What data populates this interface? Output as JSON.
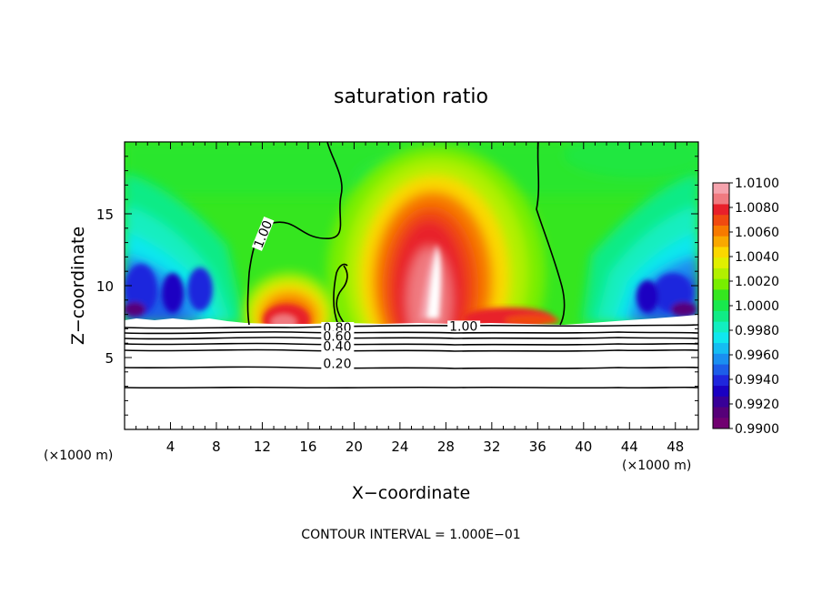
{
  "chart_data": {
    "type": "heatmap",
    "title": "saturation ratio",
    "xlabel": "X−coordinate",
    "ylabel": "Z−coordinate",
    "x_unit_left": "(×1000 m)",
    "x_unit_right": "(×1000 m)",
    "xlim": [
      0,
      50
    ],
    "ylim": [
      0,
      20
    ],
    "x_ticks": [
      4,
      8,
      12,
      16,
      20,
      24,
      28,
      32,
      36,
      40,
      44,
      48
    ],
    "y_ticks": [
      5,
      10,
      15
    ],
    "footer": "CONTOUR INTERVAL = 1.000E−01",
    "colorbar": {
      "range": [
        0.99,
        1.01
      ],
      "labels": [
        "1.0100",
        "1.0080",
        "1.0060",
        "1.0040",
        "1.0020",
        "1.0000",
        "0.9980",
        "0.9960",
        "0.9940",
        "0.9920",
        "0.9900"
      ],
      "colors": [
        "#f5a3ad",
        "#f07a80",
        "#e8202a",
        "#f04a10",
        "#f77a00",
        "#f9a800",
        "#fbd800",
        "#e0ef00",
        "#b2f000",
        "#78ee00",
        "#35e61f",
        "#18e84d",
        "#10eb86",
        "#12eec0",
        "#10e7ee",
        "#15bdf2",
        "#1a8ff0",
        "#1d5de8",
        "#1f26dd",
        "#1a00c2",
        "#380098",
        "#560079",
        "#700070"
      ]
    },
    "contour_labels": [
      {
        "text": "1.00",
        "x": 11.8,
        "y": 12.6
      },
      {
        "text": "1.00",
        "x": 28.3,
        "y": 7.0
      },
      {
        "text": "0.80",
        "x": 17.3,
        "y": 6.9
      },
      {
        "text": "0.60",
        "x": 17.3,
        "y": 6.3
      },
      {
        "text": "0.40",
        "x": 17.3,
        "y": 5.6
      },
      {
        "text": "0.20",
        "x": 17.3,
        "y": 4.4
      }
    ]
  }
}
